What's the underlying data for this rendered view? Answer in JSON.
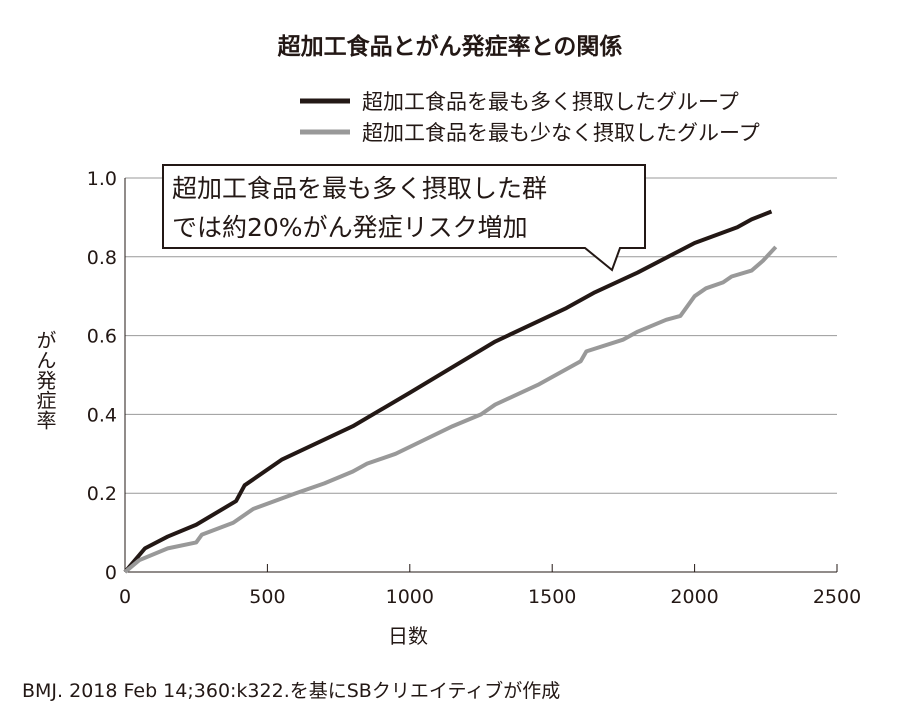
{
  "chart_data": {
    "type": "line",
    "title": "超加工食品とがん発症率との関係",
    "xlabel": "日数",
    "ylabel": "がん発症率",
    "xlim": [
      0,
      2500
    ],
    "ylim": [
      0,
      1.0
    ],
    "xticks": [
      "0",
      "500",
      "1000",
      "1500",
      "2000",
      "2500"
    ],
    "yticks": [
      "0",
      "0.2",
      "0.4",
      "0.6",
      "0.8",
      "1.0"
    ],
    "grid": "horizontal",
    "legend_position": "top-right",
    "series": [
      {
        "name": "超加工食品を最も多く摂取したグループ",
        "color": "#231815",
        "x": [
          0,
          70,
          150,
          250,
          390,
          420,
          550,
          800,
          1000,
          1300,
          1550,
          1650,
          1800,
          2000,
          2150,
          2200,
          2270
        ],
        "y": [
          0,
          0.06,
          0.09,
          0.12,
          0.18,
          0.22,
          0.285,
          0.37,
          0.455,
          0.585,
          0.67,
          0.71,
          0.76,
          0.835,
          0.875,
          0.895,
          0.915
        ]
      },
      {
        "name": "超加工食品を最も少なく摂取したグループ",
        "color": "#999999",
        "x": [
          0,
          50,
          150,
          250,
          270,
          380,
          450,
          600,
          700,
          800,
          850,
          950,
          1050,
          1150,
          1250,
          1300,
          1450,
          1550,
          1600,
          1620,
          1750,
          1800,
          1900,
          1950,
          2000,
          2040,
          2100,
          2130,
          2200,
          2240,
          2285
        ],
        "y": [
          0,
          0.03,
          0.06,
          0.075,
          0.095,
          0.125,
          0.16,
          0.2,
          0.225,
          0.255,
          0.275,
          0.3,
          0.335,
          0.37,
          0.4,
          0.425,
          0.475,
          0.515,
          0.535,
          0.56,
          0.59,
          0.61,
          0.64,
          0.65,
          0.7,
          0.72,
          0.735,
          0.75,
          0.765,
          0.79,
          0.825
        ]
      }
    ],
    "annotation": [
      "超加工食品を最も多く摂取した群",
      "では約20%がん発症リスク増加"
    ],
    "source": "BMJ. 2018 Feb 14;360:k322.を基にSBクリエイティブが作成"
  }
}
